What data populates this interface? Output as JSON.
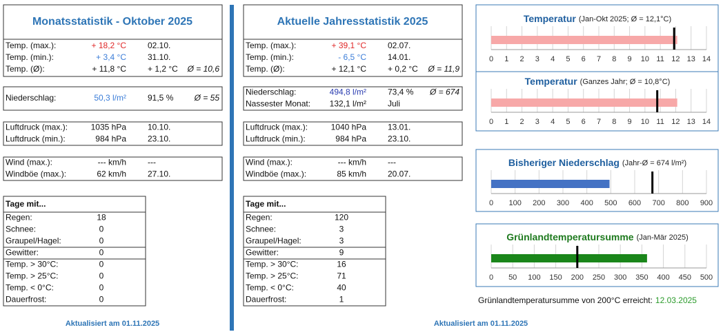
{
  "monthly": {
    "title": "Monatsstatistik - Oktober 2025",
    "temperature": [
      [
        "Temp. (max.):",
        "+ 18,2 °C",
        "02.10."
      ],
      [
        "Temp. (min.):",
        "+ 3,4 °C",
        "31.10."
      ],
      [
        "Temp. (Ø):",
        "+ 11,8 °C",
        "+ 1,2 °C",
        "Ø = 10,6"
      ]
    ],
    "precipitation": [
      [
        "Niederschlag:",
        "50,3 l/m²",
        "91,5 %",
        "Ø = 55"
      ]
    ],
    "pressure": [
      [
        "Luftdruck (max.):",
        "1035 hPa",
        "10.10."
      ],
      [
        "Luftdruck (min.):",
        "984 hPa",
        "23.10."
      ]
    ],
    "wind": [
      [
        "Wind (max.):",
        "--- km/h",
        "---"
      ],
      [
        "Windböe (max.):",
        "62 km/h",
        "27.10."
      ]
    ],
    "days": {
      "header": "Tage mit...",
      "rows": [
        [
          "Regen:",
          18
        ],
        [
          "Schnee:",
          0
        ],
        [
          "Graupel/Hagel:",
          0
        ],
        [
          "Gewitter:",
          0
        ],
        [
          "Temp. > 30°C:",
          0
        ],
        [
          "Temp. > 25°C:",
          0
        ],
        [
          "Temp. < 0°C:",
          0
        ],
        [
          "Dauerfrost:",
          0
        ]
      ]
    },
    "updated": "Aktualisiert am 01.11.2025"
  },
  "yearly": {
    "title": "Aktuelle Jahresstatistik 2025",
    "temperature": [
      [
        "Temp. (max.):",
        "+ 39,1 °C",
        "02.07."
      ],
      [
        "Temp. (min.):",
        "-  6,5 °C",
        "14.01."
      ],
      [
        "Temp. (Ø):",
        "+ 12,1 °C",
        "+ 0,2 °C",
        "Ø = 11,9"
      ]
    ],
    "precipitation": [
      [
        "Niederschlag:",
        "494,8 l/m²",
        "73,4 %",
        "Ø = 674"
      ],
      [
        "Nassester Monat:",
        "132,1 l/m²",
        "Juli"
      ]
    ],
    "pressure": [
      [
        "Luftdruck (max.):",
        "1040 hPa",
        "13.01."
      ],
      [
        "Luftdruck (min.):",
        "984 hPa",
        "23.10."
      ]
    ],
    "wind": [
      [
        "Wind (max.):",
        "--- km/h",
        "---"
      ],
      [
        "Windböe (max.):",
        "85 km/h",
        "20.07."
      ]
    ],
    "days": {
      "header": "Tage mit...",
      "rows": [
        [
          "Regen:",
          120
        ],
        [
          "Schnee:",
          3
        ],
        [
          "Graupel/Hagel:",
          3
        ],
        [
          "Gewitter:",
          9
        ],
        [
          "Temp. > 30°C:",
          16
        ],
        [
          "Temp. > 25°C:",
          71
        ],
        [
          "Temp. < 0°C:",
          40
        ],
        [
          "Dauerfrost:",
          1
        ]
      ]
    },
    "updated": "Aktualisiert am 01.11.2025"
  },
  "chart_data": [
    {
      "type": "bar",
      "title": "Temperatur",
      "subtitle": "(Jan-Okt 2025; Ø = 12,1°C)",
      "title_color": "#1f5f9f",
      "values": [
        12.1
      ],
      "reference": 11.9,
      "color": "#f7a8a8",
      "xlim": [
        0,
        14
      ],
      "xticks": [
        0,
        1,
        2,
        3,
        4,
        5,
        6,
        7,
        8,
        9,
        10,
        11,
        12,
        13,
        14
      ],
      "grid": true
    },
    {
      "type": "bar",
      "title": "Temperatur",
      "subtitle": "(Ganzes Jahr; Ø = 10,8°C)",
      "title_color": "#1f5f9f",
      "values": [
        12.1
      ],
      "reference": 10.8,
      "color": "#f7a8a8",
      "xlim": [
        0,
        14
      ],
      "xticks": [
        0,
        1,
        2,
        3,
        4,
        5,
        6,
        7,
        8,
        9,
        10,
        11,
        12,
        13,
        14
      ],
      "grid": true
    },
    {
      "type": "bar",
      "title": "Bisheriger Niederschlag",
      "subtitle": "(Jahr-Ø = 674 l/m²)",
      "title_color": "#1f5f9f",
      "values": [
        494.8
      ],
      "reference": 674,
      "color": "#4472c4",
      "xlim": [
        0,
        900
      ],
      "xticks": [
        0,
        100,
        200,
        300,
        400,
        500,
        600,
        700,
        800,
        900
      ],
      "grid": true
    },
    {
      "type": "bar",
      "title": "Grünlandtemperatursumme",
      "subtitle": "(Jan-Mär 2025)",
      "title_color": "#1e7a1e",
      "values": [
        362
      ],
      "reference": 200,
      "color": "#1a861a",
      "xlim": [
        0,
        500
      ],
      "xticks": [
        0,
        50,
        100,
        150,
        200,
        250,
        300,
        350,
        400,
        450,
        500
      ],
      "grid": true
    }
  ],
  "note": {
    "text": "Grünlandtemperatursumme von 200°C erreicht:",
    "date": "12.03.2025"
  }
}
